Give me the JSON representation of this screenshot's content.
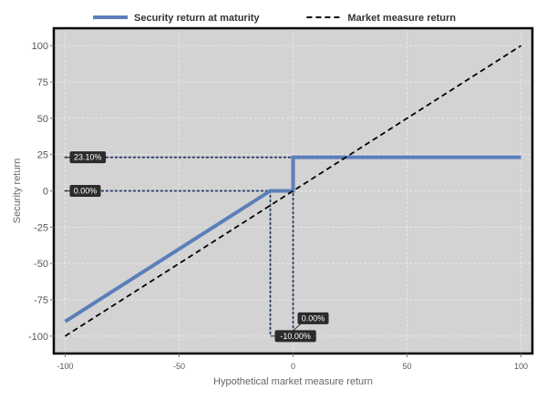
{
  "chart_data": {
    "type": "line",
    "title": "",
    "xlabel": "Hypothetical market measure return",
    "ylabel": "Security return",
    "xlim": [
      -105,
      105
    ],
    "ylim": [
      -112,
      112
    ],
    "grid": true,
    "legend_position": "top",
    "x_ticks": [
      -100,
      -50,
      0,
      50,
      100
    ],
    "x_tick_labels": [
      "-100",
      "-50",
      "0",
      "50",
      "100"
    ],
    "y_ticks": [
      100,
      75,
      50,
      25,
      0,
      -25,
      -50,
      -75,
      -100
    ],
    "y_tick_labels": [
      "100",
      "75",
      "50",
      "25",
      "0",
      "-25",
      "-50",
      "-75",
      "-100"
    ],
    "series": [
      {
        "name": "Security return at maturity",
        "style": "solid",
        "color": "#5b7fba",
        "x": [
          -100,
          -10,
          0,
          0,
          100
        ],
        "y": [
          -90,
          0,
          0,
          23.1,
          23.1
        ]
      },
      {
        "name": "Market measure return",
        "style": "dashed",
        "color": "#000000",
        "x": [
          -100,
          100
        ],
        "y": [
          -100,
          100
        ]
      }
    ],
    "guide_lines": [
      {
        "from": [
          -100,
          23.1
        ],
        "to": [
          0,
          23.1
        ]
      },
      {
        "from": [
          -100,
          0
        ],
        "to": [
          -10,
          0
        ]
      },
      {
        "from": [
          -10,
          0
        ],
        "to": [
          -10,
          -100
        ]
      },
      {
        "from": [
          0,
          23.1
        ],
        "to": [
          0,
          -100
        ]
      }
    ],
    "annotations": [
      {
        "label": "23.10%",
        "x": -100,
        "y": 23.1,
        "anchor": "y-axis"
      },
      {
        "label": "0.00%",
        "x": -100,
        "y": 0,
        "anchor": "y-axis"
      },
      {
        "label": "-10.00%",
        "x": -10,
        "y": -100,
        "anchor": "x-guide"
      },
      {
        "label": "0.00%",
        "x": 0,
        "y": -100,
        "anchor": "x-guide"
      }
    ]
  }
}
